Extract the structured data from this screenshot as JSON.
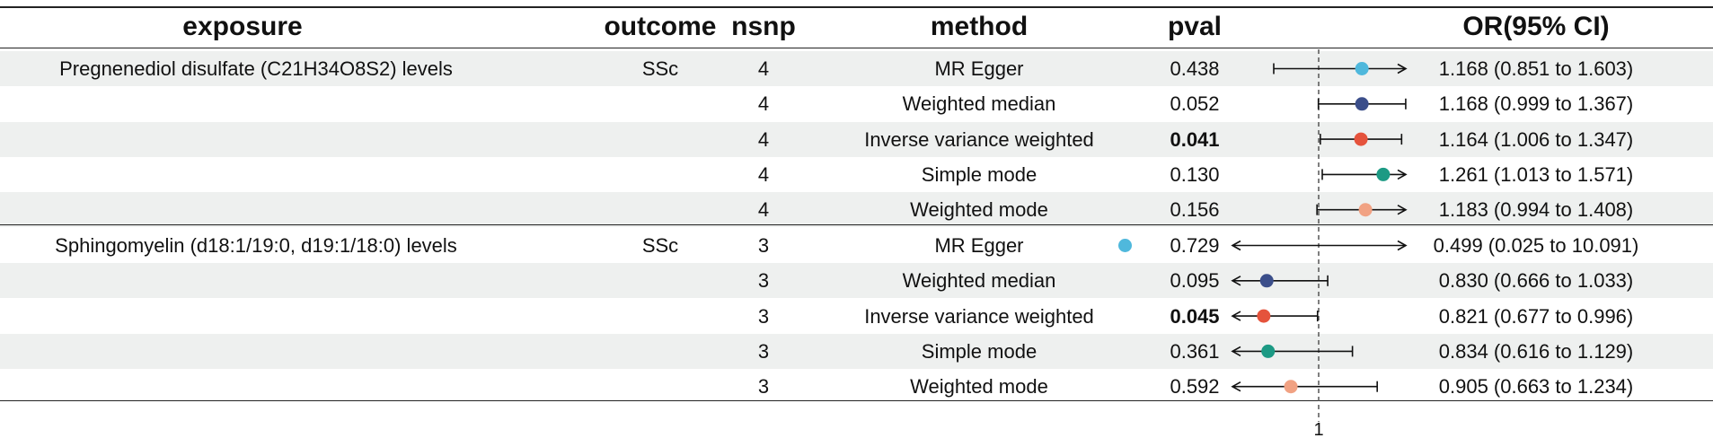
{
  "chart_data": {
    "type": "table",
    "columns": [
      "exposure",
      "outcome",
      "nsnp",
      "method",
      "pval",
      "OR(95% CI)"
    ],
    "reference_line": 1,
    "x_tick_labels": [
      "1"
    ],
    "rows": [
      {
        "exposure": "Pregnenediol disulfate (C21H34O8S2) levels",
        "outcome": "SSc",
        "nsnp": "4",
        "method": "MR Egger",
        "pval": "0.438",
        "pval_bold": false,
        "or_ci": "1.168 (0.851 to 1.603)",
        "or": 1.168,
        "lower": 0.851,
        "upper": 1.603,
        "color": "#4fb8dc"
      },
      {
        "exposure": "",
        "outcome": "",
        "nsnp": "4",
        "method": "Weighted median",
        "pval": "0.052",
        "pval_bold": false,
        "or_ci": "1.168 (0.999 to 1.367)",
        "or": 1.168,
        "lower": 0.999,
        "upper": 1.367,
        "color": "#3b4e8a"
      },
      {
        "exposure": "",
        "outcome": "",
        "nsnp": "4",
        "method": "Inverse variance weighted",
        "pval": "0.041",
        "pval_bold": true,
        "or_ci": "1.164 (1.006 to 1.347)",
        "or": 1.164,
        "lower": 1.006,
        "upper": 1.347,
        "color": "#e5533c"
      },
      {
        "exposure": "",
        "outcome": "",
        "nsnp": "4",
        "method": "Simple mode",
        "pval": "0.130",
        "pval_bold": false,
        "or_ci": "1.261 (1.013 to 1.571)",
        "or": 1.261,
        "lower": 1.013,
        "upper": 1.571,
        "color": "#1c9a84"
      },
      {
        "exposure": "",
        "outcome": "",
        "nsnp": "4",
        "method": "Weighted mode",
        "pval": "0.156",
        "pval_bold": false,
        "or_ci": "1.183 (0.994 to 1.408)",
        "or": 1.183,
        "lower": 0.994,
        "upper": 1.408,
        "color": "#f1a283"
      },
      {
        "exposure": "Sphingomyelin (d18:1/19:0, d19:1/18:0) levels",
        "outcome": "SSc",
        "nsnp": "3",
        "method": "MR Egger",
        "pval": "0.729",
        "pval_bold": false,
        "or_ci": "0.499 (0.025 to 10.091)",
        "or": 0.499,
        "lower": 0.025,
        "upper": 10.091,
        "color": "#4fb8dc"
      },
      {
        "exposure": "",
        "outcome": "",
        "nsnp": "3",
        "method": "Weighted median",
        "pval": "0.095",
        "pval_bold": false,
        "or_ci": "0.830 (0.666 to 1.033)",
        "or": 0.83,
        "lower": 0.666,
        "upper": 1.033,
        "color": "#3b4e8a"
      },
      {
        "exposure": "",
        "outcome": "",
        "nsnp": "3",
        "method": "Inverse variance weighted",
        "pval": "0.045",
        "pval_bold": true,
        "or_ci": "0.821 (0.677 to 0.996)",
        "or": 0.821,
        "lower": 0.677,
        "upper": 0.996,
        "color": "#e5533c"
      },
      {
        "exposure": "",
        "outcome": "",
        "nsnp": "3",
        "method": "Simple mode",
        "pval": "0.361",
        "pval_bold": false,
        "or_ci": "0.834 (0.616 to 1.129)",
        "or": 0.834,
        "lower": 0.616,
        "upper": 1.129,
        "color": "#1c9a84"
      },
      {
        "exposure": "",
        "outcome": "",
        "nsnp": "3",
        "method": "Weighted mode",
        "pval": "0.592",
        "pval_bold": false,
        "or_ci": "0.905 (0.663 to 1.234)",
        "or": 0.905,
        "lower": 0.663,
        "upper": 1.234,
        "color": "#f1a283"
      }
    ]
  }
}
